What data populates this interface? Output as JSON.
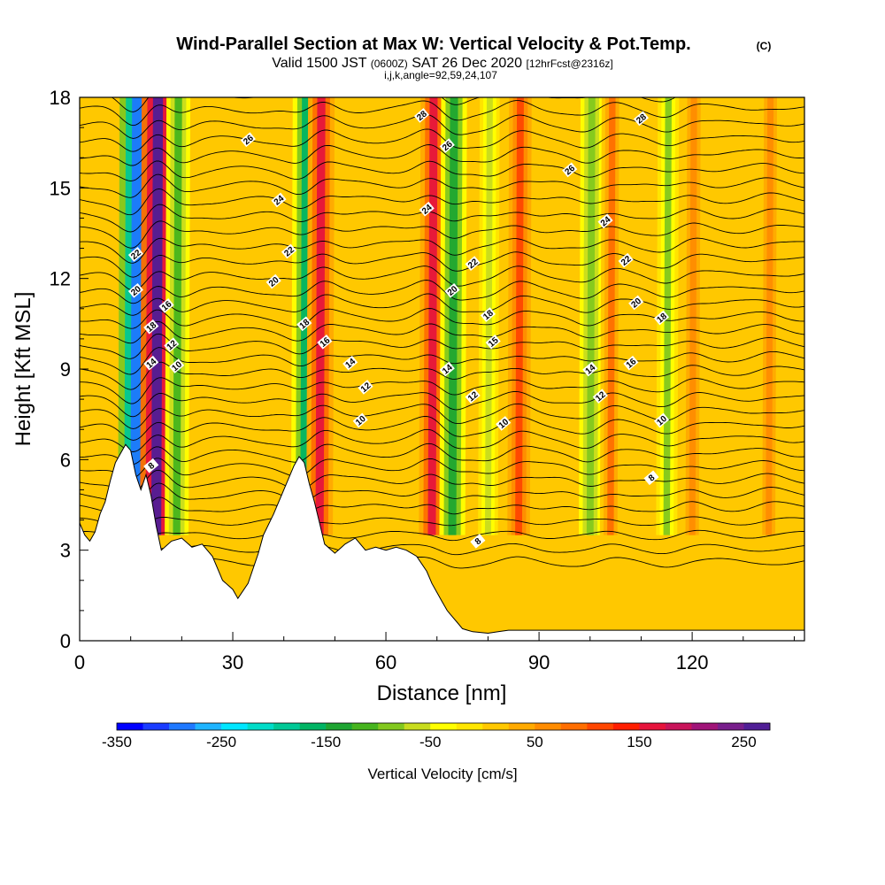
{
  "chart_data": {
    "type": "heatmap",
    "title": "Wind-Parallel Section at Max W: Vertical Velocity & Pot.Temp.",
    "title_mark": "(C)",
    "subtitle": {
      "prefix": "Valid 1500 JST",
      "utc": "(0600Z)",
      "date": "SAT 26 Dec 2020",
      "forecast": "[12hrFcst@2316z]"
    },
    "subtitle2": "i,j,k,angle=92,59,24,107",
    "xlabel": "Distance [nm]",
    "ylabel": "Height [Kft MSL]",
    "xlim": [
      0,
      142
    ],
    "ylim": [
      0,
      18
    ],
    "x_ticks": [
      "0",
      "30",
      "60",
      "90",
      "120"
    ],
    "y_ticks": [
      "0",
      "3",
      "6",
      "9",
      "12",
      "15",
      "18"
    ],
    "colorbar": {
      "label": "Vertical Velocity [cm/s]",
      "range": [
        -350,
        275
      ],
      "tick_labels": [
        "-350",
        "-250",
        "-150",
        "-50",
        "50",
        "150",
        "250"
      ],
      "colors": [
        "#0000ff",
        "#1a3cff",
        "#1e78ff",
        "#1eb4ff",
        "#00e6ff",
        "#00dcc8",
        "#00c896",
        "#00b464",
        "#1ea532",
        "#46b41e",
        "#82c81e",
        "#c8dc1e",
        "#ffff00",
        "#ffe600",
        "#ffc800",
        "#ffaa00",
        "#ff8c00",
        "#ff6e00",
        "#ff4600",
        "#ff1e00",
        "#e6143c",
        "#c8145a",
        "#a01478",
        "#781e8c",
        "#501e96"
      ]
    },
    "updraft_bands": [
      {
        "x": 11,
        "w": -300
      },
      {
        "x": 15,
        "w": 250
      },
      {
        "x": 19,
        "w": -120
      },
      {
        "x": 44,
        "w": -160
      },
      {
        "x": 47,
        "w": 160
      },
      {
        "x": 69,
        "w": 150
      },
      {
        "x": 73,
        "w": -150
      },
      {
        "x": 80,
        "w": -60
      },
      {
        "x": 86,
        "w": 100
      },
      {
        "x": 100,
        "w": -100
      },
      {
        "x": 104,
        "w": 80
      },
      {
        "x": 115,
        "w": -80
      },
      {
        "x": 120,
        "w": 70
      },
      {
        "x": 135,
        "w": 60
      }
    ],
    "theta_contour_labels": [
      {
        "label": "28",
        "x": 67,
        "y": 17.4
      },
      {
        "label": "28",
        "x": 110,
        "y": 17.3
      },
      {
        "label": "26",
        "x": 33,
        "y": 16.6
      },
      {
        "label": "26",
        "x": 72,
        "y": 16.4
      },
      {
        "label": "26",
        "x": 96,
        "y": 15.6
      },
      {
        "label": "24",
        "x": 39,
        "y": 14.6
      },
      {
        "label": "24",
        "x": 68,
        "y": 14.3
      },
      {
        "label": "24",
        "x": 103,
        "y": 13.9
      },
      {
        "label": "22",
        "x": 11,
        "y": 12.8
      },
      {
        "label": "22",
        "x": 41,
        "y": 12.9
      },
      {
        "label": "22",
        "x": 77,
        "y": 12.5
      },
      {
        "label": "22",
        "x": 107,
        "y": 12.6
      },
      {
        "label": "20",
        "x": 11,
        "y": 11.6
      },
      {
        "label": "20",
        "x": 38,
        "y": 11.9
      },
      {
        "label": "20",
        "x": 73,
        "y": 11.6
      },
      {
        "label": "20",
        "x": 109,
        "y": 11.2
      },
      {
        "label": "18",
        "x": 14,
        "y": 10.4
      },
      {
        "label": "18",
        "x": 44,
        "y": 10.5
      },
      {
        "label": "18",
        "x": 80,
        "y": 10.8
      },
      {
        "label": "18",
        "x": 114,
        "y": 10.7
      },
      {
        "label": "16",
        "x": 17,
        "y": 11.1
      },
      {
        "label": "16",
        "x": 48,
        "y": 9.9
      },
      {
        "label": "16",
        "x": 108,
        "y": 9.2
      },
      {
        "label": "15",
        "x": 81,
        "y": 9.9
      },
      {
        "label": "14",
        "x": 14,
        "y": 9.2
      },
      {
        "label": "14",
        "x": 53,
        "y": 9.2
      },
      {
        "label": "14",
        "x": 72,
        "y": 9.0
      },
      {
        "label": "14",
        "x": 100,
        "y": 9.0
      },
      {
        "label": "12",
        "x": 18,
        "y": 9.8
      },
      {
        "label": "12",
        "x": 56,
        "y": 8.4
      },
      {
        "label": "12",
        "x": 77,
        "y": 8.1
      },
      {
        "label": "12",
        "x": 102,
        "y": 8.1
      },
      {
        "label": "10",
        "x": 19,
        "y": 9.1
      },
      {
        "label": "10",
        "x": 55,
        "y": 7.3
      },
      {
        "label": "10",
        "x": 83,
        "y": 7.2
      },
      {
        "label": "10",
        "x": 114,
        "y": 7.3
      },
      {
        "label": "8",
        "x": 14,
        "y": 5.8
      },
      {
        "label": "8",
        "x": 78,
        "y": 3.3
      },
      {
        "label": "8",
        "x": 112,
        "y": 5.4
      }
    ]
  }
}
